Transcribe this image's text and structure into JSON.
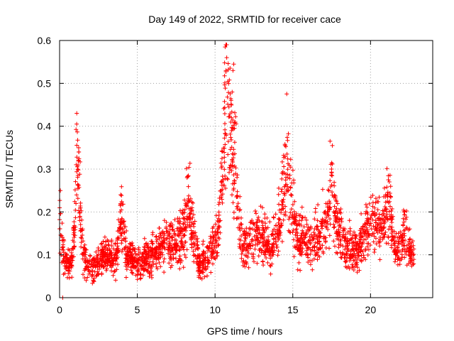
{
  "chart_data": {
    "type": "scatter",
    "title": "Day 149 of 2022, SRMTID for receiver cace",
    "xlabel": "GPS time / hours",
    "ylabel": "SRMTID / TECUs",
    "xlim": [
      0,
      24
    ],
    "ylim": [
      0,
      0.6
    ],
    "xticks": [
      0,
      5,
      10,
      15,
      20
    ],
    "xtick_labels": [
      "0",
      "5",
      "10",
      "15",
      "20"
    ],
    "yticks": [
      0,
      0.1,
      0.2,
      0.3,
      0.4,
      0.5,
      0.6
    ],
    "ytick_labels": [
      "0",
      "0.1",
      "0.2",
      "0.3",
      "0.4",
      "0.5",
      "0.6"
    ],
    "grid": true,
    "marker": "+",
    "color": "#ff0000",
    "x_extent": [
      0,
      22.8
    ],
    "series": [
      {
        "name": "SRMTID",
        "envelope_x": [
          0,
          0.1,
          0.3,
          0.5,
          0.8,
          1.0,
          1.1,
          1.2,
          1.4,
          1.6,
          2.0,
          2.5,
          3.0,
          3.5,
          3.8,
          4.0,
          4.3,
          5.0,
          5.5,
          6.0,
          6.5,
          7.0,
          7.5,
          8.0,
          8.3,
          8.6,
          9.0,
          9.4,
          9.8,
          10.2,
          10.5,
          10.7,
          10.9,
          11.1,
          11.3,
          11.5,
          11.8,
          12.2,
          12.6,
          13.0,
          13.5,
          14.0,
          14.4,
          14.6,
          14.9,
          15.3,
          15.8,
          16.3,
          16.8,
          17.2,
          17.5,
          17.7,
          18.0,
          18.4,
          18.8,
          19.2,
          19.6,
          20.0,
          20.2,
          20.4,
          20.7,
          21.0,
          21.2,
          21.5,
          21.8,
          22.2,
          22.5,
          22.8
        ],
        "envelope_y": [
          0.2,
          0.15,
          0.1,
          0.07,
          0.08,
          0.2,
          0.33,
          0.28,
          0.15,
          0.09,
          0.07,
          0.08,
          0.1,
          0.09,
          0.12,
          0.19,
          0.1,
          0.08,
          0.09,
          0.1,
          0.12,
          0.13,
          0.12,
          0.16,
          0.22,
          0.15,
          0.08,
          0.09,
          0.12,
          0.15,
          0.3,
          0.45,
          0.4,
          0.35,
          0.3,
          0.18,
          0.12,
          0.13,
          0.14,
          0.15,
          0.12,
          0.15,
          0.24,
          0.32,
          0.22,
          0.14,
          0.13,
          0.12,
          0.15,
          0.17,
          0.27,
          0.2,
          0.15,
          0.12,
          0.11,
          0.11,
          0.14,
          0.17,
          0.19,
          0.18,
          0.16,
          0.2,
          0.23,
          0.13,
          0.11,
          0.16,
          0.11,
          0.1
        ],
        "notable_points": [
          {
            "x": 1.1,
            "y": 0.405
          },
          {
            "x": 10.65,
            "y": 0.585
          },
          {
            "x": 10.75,
            "y": 0.56
          },
          {
            "x": 10.7,
            "y": 0.53
          },
          {
            "x": 11.2,
            "y": 0.545
          },
          {
            "x": 11.15,
            "y": 0.53
          },
          {
            "x": 17.4,
            "y": 0.365
          },
          {
            "x": 14.5,
            "y": 0.355
          },
          {
            "x": 8.2,
            "y": 0.28
          },
          {
            "x": 21.15,
            "y": 0.275
          },
          {
            "x": 0.05,
            "y": 0.25
          },
          {
            "x": 0.2,
            "y": 0.0
          }
        ]
      }
    ]
  }
}
